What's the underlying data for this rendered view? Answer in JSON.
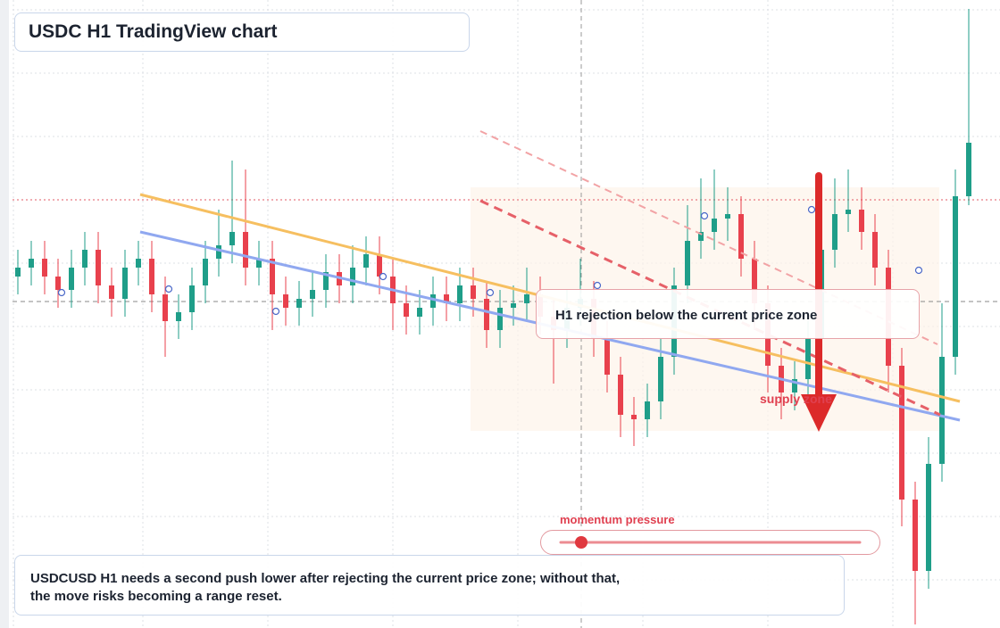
{
  "chart_data": {
    "type": "candlestick",
    "title": "USDC H1 TradingView chart",
    "annotations": {
      "callout": "H1 rejection below the current price zone",
      "zone_label": "supply zone",
      "momentum_label": "momentum pressure",
      "note": [
        "USDCUSD H1 needs a second push lower after rejecting the current price zone; without that,",
        "the move risks becoming a range reset."
      ]
    },
    "up_color": "#1f9e89",
    "down_color": "#e8414d",
    "ylim": [
      0,
      704
    ],
    "open": [
      394,
      404,
      414,
      394,
      379,
      404,
      424,
      384,
      369,
      404,
      414,
      374,
      344,
      354,
      384,
      414,
      429,
      444,
      404,
      414,
      374,
      359,
      369,
      379,
      399,
      384,
      404,
      419,
      394,
      364,
      349,
      359,
      374,
      364,
      384,
      369,
      334,
      359,
      364,
      374,
      349,
      334,
      359,
      369,
      324,
      284,
      239,
      234,
      254,
      304,
      384,
      434,
      444,
      459,
      464,
      414,
      364,
      294,
      264,
      279,
      324,
      424,
      464,
      469,
      444,
      404,
      294,
      144,
      64,
      184,
      304,
      484
    ],
    "high": [
      424,
      434,
      434,
      414,
      424,
      444,
      444,
      404,
      424,
      434,
      434,
      394,
      374,
      404,
      434,
      469,
      524,
      514,
      434,
      434,
      394,
      389,
      399,
      419,
      419,
      429,
      439,
      439,
      414,
      384,
      379,
      394,
      394,
      404,
      404,
      389,
      379,
      384,
      404,
      394,
      369,
      379,
      414,
      389,
      344,
      304,
      259,
      274,
      324,
      404,
      474,
      504,
      514,
      494,
      484,
      434,
      384,
      314,
      299,
      344,
      444,
      504,
      514,
      494,
      464,
      424,
      314,
      164,
      214,
      364,
      514,
      694
    ],
    "low": [
      374,
      384,
      374,
      359,
      359,
      384,
      364,
      349,
      349,
      384,
      354,
      304,
      324,
      334,
      364,
      394,
      409,
      384,
      384,
      334,
      339,
      339,
      349,
      359,
      364,
      364,
      384,
      374,
      334,
      329,
      329,
      339,
      344,
      344,
      349,
      314,
      314,
      339,
      344,
      329,
      274,
      314,
      339,
      304,
      264,
      214,
      204,
      214,
      234,
      284,
      364,
      414,
      424,
      434,
      394,
      334,
      264,
      234,
      244,
      259,
      304,
      404,
      444,
      424,
      384,
      264,
      114,
      4,
      44,
      164,
      284,
      474
    ],
    "close": [
      404,
      414,
      394,
      379,
      404,
      424,
      384,
      369,
      404,
      414,
      374,
      344,
      354,
      384,
      414,
      429,
      444,
      404,
      414,
      374,
      359,
      369,
      379,
      399,
      384,
      404,
      419,
      394,
      364,
      349,
      359,
      374,
      364,
      384,
      369,
      334,
      359,
      364,
      374,
      349,
      334,
      359,
      369,
      324,
      284,
      239,
      234,
      254,
      304,
      384,
      434,
      444,
      459,
      464,
      414,
      364,
      294,
      264,
      279,
      324,
      424,
      464,
      469,
      444,
      404,
      294,
      144,
      64,
      184,
      304,
      484,
      544
    ]
  }
}
